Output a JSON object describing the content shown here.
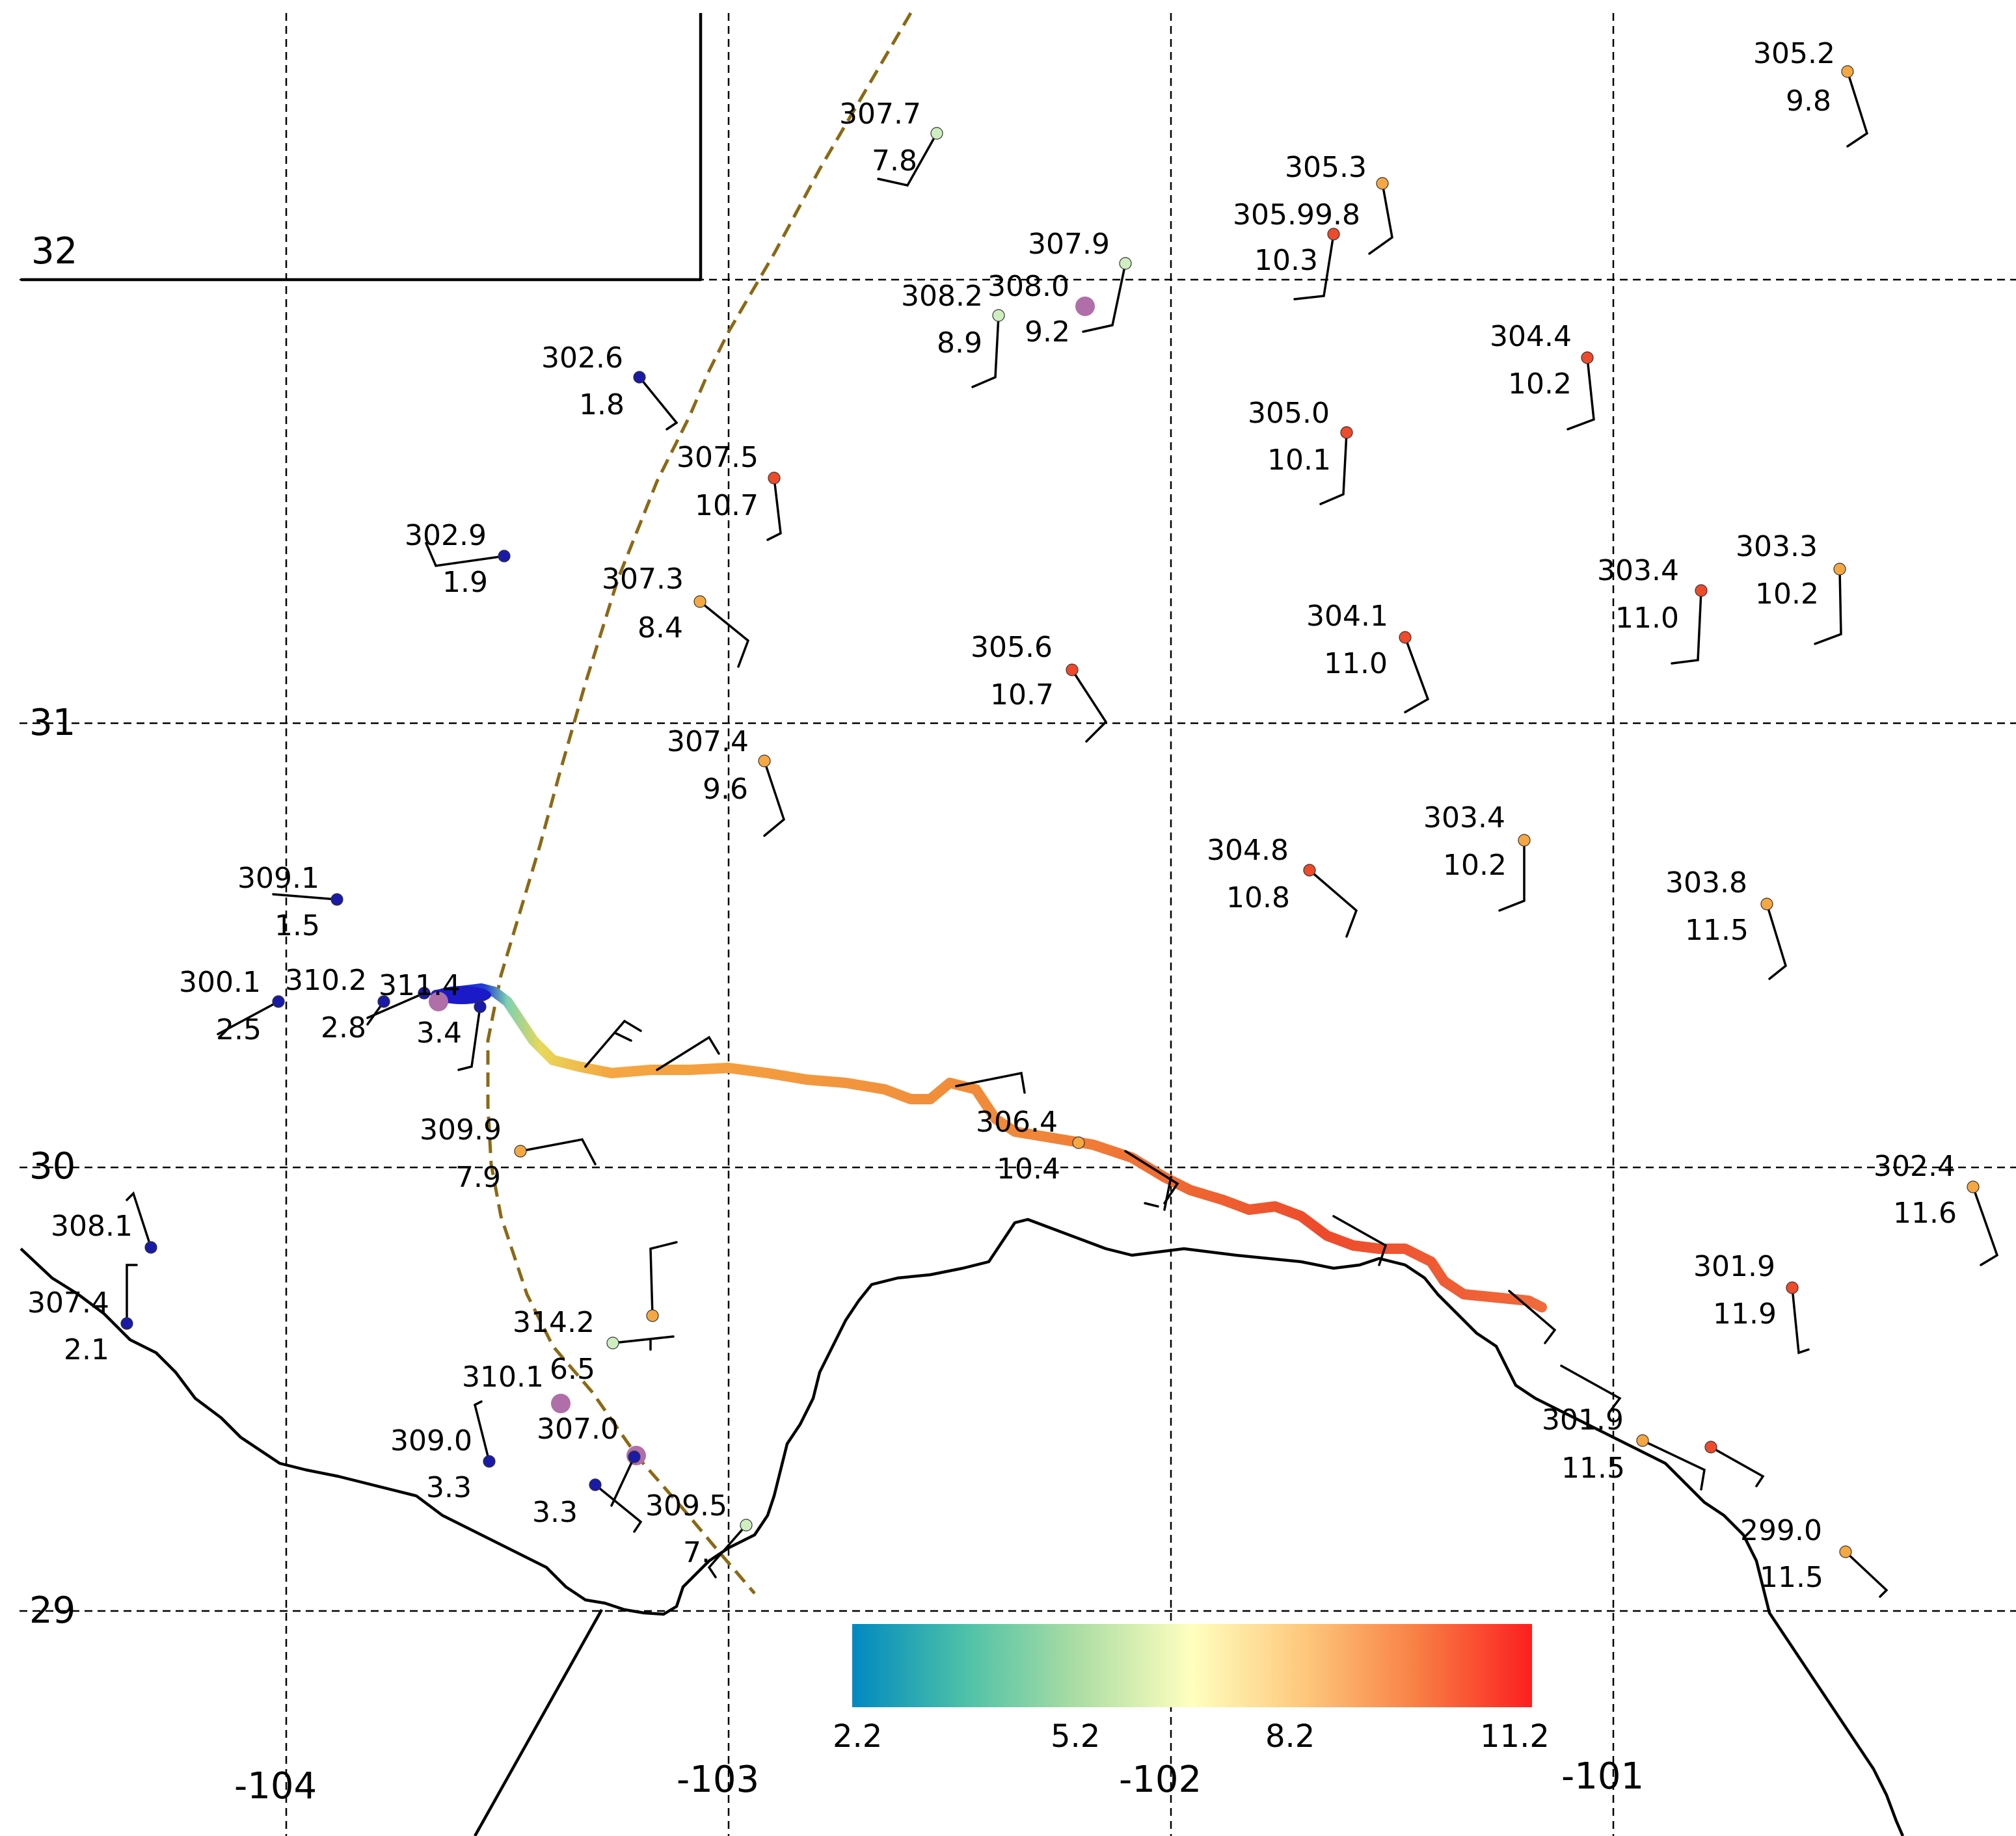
{
  "colors": {
    "track": "#8B6914",
    "marker": "#B06FA8",
    "colormap": [
      "#0089c1",
      "#ffffbf",
      "#fb1f1f"
    ]
  },
  "axes": {
    "lat_labels": [
      "32",
      "31",
      "30",
      "29"
    ],
    "lon_labels": [
      "-104",
      "-103",
      "-102",
      "-101"
    ]
  },
  "colorbar": {
    "ticks": [
      "2.2",
      "5.2",
      "8.2",
      "11.2"
    ],
    "range": [
      2.2,
      11.2
    ]
  },
  "stations": [
    {
      "id": "s1",
      "top": "305.2",
      "bottom": "9.8",
      "color": "#f5a742"
    },
    {
      "id": "s2",
      "top": "307.7",
      "bottom": "7.8",
      "color": "#cfeec0"
    },
    {
      "id": "s3",
      "top": "305.3",
      "bottom": "",
      "color": "#f5a742"
    },
    {
      "id": "s4",
      "top": "305.99.8",
      "bottom": "10.3",
      "color": "#ee4a2c"
    },
    {
      "id": "s5",
      "top": "307.9",
      "bottom": "",
      "color": "#cfeec0"
    },
    {
      "id": "s6",
      "top": "308.0",
      "bottom": "9.2",
      "color": "#cfeec0"
    },
    {
      "id": "s7",
      "top": "308.2",
      "bottom": "8.9",
      "color": "#cfeec0"
    },
    {
      "id": "s8",
      "top": "302.6",
      "bottom": "1.8",
      "color": "#1a1aa8"
    },
    {
      "id": "s9",
      "top": "304.4",
      "bottom": "10.2",
      "color": "#ee4a2c"
    },
    {
      "id": "s10",
      "top": "305.0",
      "bottom": "10.1",
      "color": "#ee4a2c"
    },
    {
      "id": "s11",
      "top": "307.5",
      "bottom": "10.7",
      "color": "#ee4a2c"
    },
    {
      "id": "s12",
      "top": "302.9",
      "bottom": "1.9",
      "color": "#1a1aa8"
    },
    {
      "id": "s13",
      "top": "307.3",
      "bottom": "8.4",
      "color": "#f5a742"
    },
    {
      "id": "s14",
      "top": "303.4",
      "bottom": "11.0",
      "color": "#ee4a2c"
    },
    {
      "id": "s15",
      "top": "303.3",
      "bottom": "10.2",
      "color": "#f5a742"
    },
    {
      "id": "s16",
      "top": "304.1",
      "bottom": "11.0",
      "color": "#ee4a2c"
    },
    {
      "id": "s17",
      "top": "305.6",
      "bottom": "10.7",
      "color": "#ee4a2c"
    },
    {
      "id": "s18",
      "top": "307.4",
      "bottom": "9.6",
      "color": "#f5a742"
    },
    {
      "id": "s19",
      "top": "304.8",
      "bottom": "10.8",
      "color": "#ee4a2c"
    },
    {
      "id": "s20",
      "top": "303.4",
      "bottom": "10.2",
      "color": "#f5a742"
    },
    {
      "id": "s21",
      "top": "303.8",
      "bottom": "11.5",
      "color": "#f5a742"
    },
    {
      "id": "s22",
      "top": "309.1",
      "bottom": "1.5",
      "color": "#1a1aa8"
    },
    {
      "id": "s23",
      "top": "300.1",
      "bottom": "2.5",
      "color": "#1a1aa8"
    },
    {
      "id": "s24",
      "top": "310.2",
      "bottom": "2.8",
      "color": "#1a1aa8"
    },
    {
      "id": "s25",
      "top": "311.4",
      "bottom": "3.4",
      "color": "#1a1aa8"
    },
    {
      "id": "s26",
      "top": "306.4",
      "bottom": "10.4",
      "color": "#f5a742"
    },
    {
      "id": "s27",
      "top": "309.9",
      "bottom": "7.9",
      "color": "#f5a742"
    },
    {
      "id": "s28",
      "top": "302.4",
      "bottom": "11.6",
      "color": "#f5a742"
    },
    {
      "id": "s29",
      "top": "308.1",
      "bottom": "",
      "color": "#1a1aa8"
    },
    {
      "id": "s30",
      "top": "307.4",
      "bottom": "2.1",
      "color": "#1a1aa8"
    },
    {
      "id": "s31",
      "top": "314.2",
      "bottom": "6.5",
      "color": "#cfeec0"
    },
    {
      "id": "s32",
      "top": "301.9",
      "bottom": "11.9",
      "color": "#ee4a2c"
    },
    {
      "id": "s33",
      "top": "310.1",
      "bottom": "",
      "color": "#1a1aa8"
    },
    {
      "id": "s34",
      "top": "309.0",
      "bottom": "3.3",
      "color": "#1a1aa8"
    },
    {
      "id": "s35",
      "top": "307.0",
      "bottom": "3.3",
      "color": "#1a1aa8"
    },
    {
      "id": "s36",
      "top": "301.9",
      "bottom": "11.5",
      "color": "#f5a742"
    },
    {
      "id": "s37",
      "top": "309.5",
      "bottom": "7.",
      "color": "#cfeec0"
    },
    {
      "id": "s38",
      "top": "299.0",
      "bottom": "11.5",
      "color": "#f5a742"
    },
    {
      "id": "s39",
      "top": "",
      "bottom": "",
      "color": "#f5a742"
    }
  ]
}
